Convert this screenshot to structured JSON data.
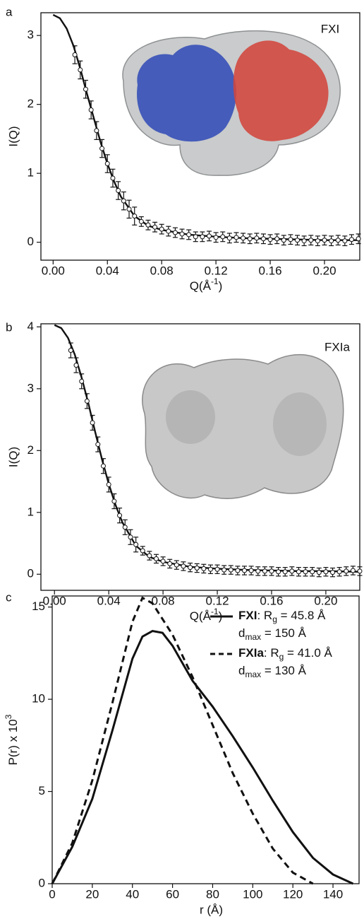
{
  "chart_data": [
    {
      "type": "scatter",
      "panel_label": "a",
      "inset_label": "FXI",
      "y_label": "I(Q)",
      "x_label": [
        "Q(Å",
        "-1",
        ")"
      ],
      "xlim": [
        -0.009,
        0.226
      ],
      "ylim": [
        -0.26,
        3.33
      ],
      "xticks": [
        {
          "value": 0,
          "label": "0.00"
        },
        {
          "value": 0.04,
          "label": "0.04"
        },
        {
          "value": 0.08,
          "label": "0.08"
        },
        {
          "value": 0.12,
          "label": "0.12"
        },
        {
          "value": 0.16,
          "label": "0.16"
        },
        {
          "value": 0.2,
          "label": "0.20"
        }
      ],
      "yticks": [
        0,
        1,
        2,
        3
      ],
      "points": {
        "x": [
          0.016,
          0.02,
          0.024,
          0.028,
          0.032,
          0.036,
          0.04,
          0.044,
          0.048,
          0.052,
          0.056,
          0.06,
          0.065,
          0.07,
          0.075,
          0.08,
          0.085,
          0.09,
          0.095,
          0.1,
          0.105,
          0.11,
          0.115,
          0.12,
          0.125,
          0.13,
          0.135,
          0.14,
          0.145,
          0.15,
          0.155,
          0.16,
          0.165,
          0.17,
          0.175,
          0.18,
          0.185,
          0.19,
          0.195,
          0.2,
          0.205,
          0.21,
          0.215,
          0.22,
          0.225
        ],
        "values": [
          2.72,
          2.5,
          2.22,
          1.92,
          1.62,
          1.36,
          1.14,
          0.93,
          0.75,
          0.6,
          0.48,
          0.38,
          0.3,
          0.25,
          0.22,
          0.19,
          0.16,
          0.14,
          0.12,
          0.11,
          0.08,
          0.08,
          0.09,
          0.07,
          0.08,
          0.06,
          0.07,
          0.06,
          0.05,
          0.06,
          0.05,
          0.04,
          0.05,
          0.03,
          0.04,
          0.03,
          0.02,
          0.03,
          0.02,
          0.03,
          0.02,
          0.03,
          0.02,
          0.04,
          0.05
        ],
        "errors": [
          0.13,
          0.13,
          0.13,
          0.13,
          0.13,
          0.13,
          0.13,
          0.13,
          0.13,
          0.13,
          0.13,
          0.13,
          0.07,
          0.07,
          0.07,
          0.07,
          0.07,
          0.07,
          0.07,
          0.07,
          0.07,
          0.07,
          0.07,
          0.07,
          0.07,
          0.07,
          0.07,
          0.07,
          0.07,
          0.07,
          0.07,
          0.07,
          0.07,
          0.07,
          0.07,
          0.07,
          0.07,
          0.07,
          0.07,
          0.07,
          0.07,
          0.07,
          0.07,
          0.07,
          0.07
        ]
      },
      "fit": {
        "x": [
          0,
          0.005,
          0.01,
          0.015,
          0.02,
          0.025,
          0.03,
          0.035,
          0.04,
          0.045,
          0.05,
          0.06,
          0.07,
          0.08,
          0.1,
          0.12,
          0.14,
          0.16,
          0.18,
          0.2,
          0.225
        ],
        "values": [
          3.3,
          3.25,
          3.1,
          2.85,
          2.52,
          2.15,
          1.8,
          1.45,
          1.14,
          0.88,
          0.66,
          0.38,
          0.24,
          0.18,
          0.11,
          0.08,
          0.06,
          0.05,
          0.04,
          0.03,
          0.03
        ]
      }
    },
    {
      "type": "scatter",
      "panel_label": "b",
      "inset_label": "FXIa",
      "y_label": "I(Q)",
      "x_label": [
        "Q(Å",
        "-1",
        ")"
      ],
      "xlim": [
        -0.01,
        0.225
      ],
      "ylim": [
        -0.26,
        4.05
      ],
      "xticks": [
        {
          "value": 0,
          "label": "0.00"
        },
        {
          "value": 0.04,
          "label": "0.04"
        },
        {
          "value": 0.08,
          "label": "0.08"
        },
        {
          "value": 0.12,
          "label": "0.12"
        },
        {
          "value": 0.16,
          "label": "0.16"
        },
        {
          "value": 0.2,
          "label": "0.20"
        }
      ],
      "yticks": [
        0,
        1,
        2,
        3,
        4
      ],
      "points": {
        "x": [
          0.012,
          0.016,
          0.02,
          0.024,
          0.028,
          0.032,
          0.036,
          0.04,
          0.044,
          0.048,
          0.052,
          0.056,
          0.06,
          0.065,
          0.07,
          0.075,
          0.08,
          0.085,
          0.09,
          0.095,
          0.1,
          0.105,
          0.11,
          0.115,
          0.12,
          0.125,
          0.13,
          0.135,
          0.14,
          0.145,
          0.15,
          0.155,
          0.16,
          0.165,
          0.17,
          0.175,
          0.18,
          0.185,
          0.19,
          0.195,
          0.2,
          0.205,
          0.21,
          0.215,
          0.22,
          0.225
        ],
        "values": [
          3.62,
          3.38,
          3.12,
          2.8,
          2.45,
          2.1,
          1.75,
          1.45,
          1.18,
          0.95,
          0.76,
          0.6,
          0.48,
          0.38,
          0.3,
          0.25,
          0.21,
          0.17,
          0.15,
          0.13,
          0.11,
          0.1,
          0.09,
          0.08,
          0.08,
          0.07,
          0.07,
          0.06,
          0.06,
          0.06,
          0.05,
          0.05,
          0.05,
          0.04,
          0.04,
          0.05,
          0.04,
          0.04,
          0.04,
          0.03,
          0.04,
          0.03,
          0.04,
          0.05,
          0.06,
          0.05
        ],
        "errors": [
          0.12,
          0.12,
          0.12,
          0.12,
          0.12,
          0.12,
          0.12,
          0.12,
          0.12,
          0.12,
          0.12,
          0.12,
          0.12,
          0.07,
          0.07,
          0.07,
          0.07,
          0.07,
          0.07,
          0.07,
          0.07,
          0.07,
          0.07,
          0.07,
          0.07,
          0.07,
          0.07,
          0.07,
          0.07,
          0.07,
          0.07,
          0.07,
          0.07,
          0.07,
          0.07,
          0.07,
          0.07,
          0.07,
          0.07,
          0.07,
          0.07,
          0.07,
          0.07,
          0.07,
          0.07,
          0.07
        ]
      },
      "fit": {
        "x": [
          0,
          0.005,
          0.01,
          0.015,
          0.02,
          0.025,
          0.03,
          0.035,
          0.04,
          0.045,
          0.05,
          0.06,
          0.07,
          0.08,
          0.1,
          0.12,
          0.14,
          0.16,
          0.18,
          0.2,
          0.225
        ],
        "values": [
          4.03,
          3.98,
          3.82,
          3.55,
          3.18,
          2.76,
          2.3,
          1.86,
          1.46,
          1.12,
          0.84,
          0.46,
          0.28,
          0.2,
          0.12,
          0.09,
          0.07,
          0.06,
          0.05,
          0.05,
          0.04
        ]
      }
    },
    {
      "type": "line",
      "panel_label": "c",
      "y_label": [
        "P(r) x 10",
        "3"
      ],
      "x_label": "r (Å)",
      "xlim": [
        0,
        153
      ],
      "ylim": [
        0,
        15.6
      ],
      "xticks": [
        0,
        20,
        40,
        60,
        80,
        100,
        120,
        140
      ],
      "yticks": [
        0,
        5,
        10,
        15
      ],
      "series": [
        {
          "name": "FXI",
          "color": "#111",
          "dash": false,
          "rg": [
            ": R",
            "g",
            " = 45.8 Å"
          ],
          "dmax": [
            "d",
            "max",
            " = 150 Å"
          ],
          "x": [
            0,
            10,
            20,
            30,
            40,
            45,
            50,
            55,
            60,
            70,
            80,
            90,
            100,
            110,
            120,
            130,
            140,
            150
          ],
          "values": [
            0,
            2.0,
            4.6,
            8.3,
            12.2,
            13.4,
            13.7,
            13.6,
            12.9,
            11.0,
            9.6,
            8.0,
            6.3,
            4.5,
            2.8,
            1.4,
            0.5,
            0
          ]
        },
        {
          "name": "FXIa",
          "color": "#111",
          "dash": true,
          "rg": [
            ": R",
            "g",
            " = 41.0 Å"
          ],
          "dmax": [
            "d",
            "max",
            " = 130 Å"
          ],
          "x": [
            0,
            10,
            20,
            30,
            40,
            45,
            50,
            60,
            70,
            80,
            90,
            100,
            110,
            120,
            130
          ],
          "values": [
            0,
            2.2,
            5.6,
            9.8,
            14.2,
            15.5,
            15.2,
            13.5,
            11.2,
            8.6,
            6.0,
            3.8,
            1.9,
            0.6,
            0
          ]
        }
      ]
    }
  ]
}
